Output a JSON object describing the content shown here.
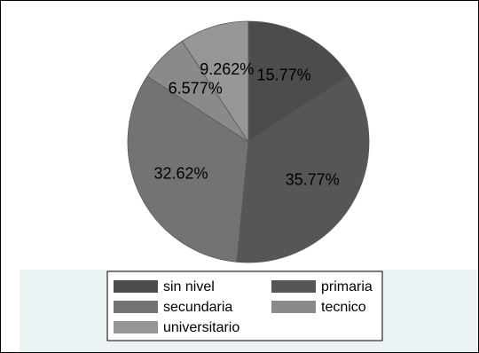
{
  "chart_data": {
    "type": "pie",
    "slices": [
      {
        "label": "sin nivel",
        "value": 15.77,
        "value_label": "15.77%",
        "color": "#4c4c4c"
      },
      {
        "label": "primaria",
        "value": 35.77,
        "value_label": "35.77%",
        "color": "#565656"
      },
      {
        "label": "secundaria",
        "value": 32.62,
        "value_label": "32.62%",
        "color": "#737373"
      },
      {
        "label": "tecnico",
        "value": 6.577,
        "value_label": "6.577%",
        "color": "#8a8a8a"
      },
      {
        "label": "universitario",
        "value": 9.262,
        "value_label": "9.262%",
        "color": "#969696"
      }
    ],
    "legend_placement": "bottom",
    "colors": {
      "plot_background": "#ffffff",
      "outer_background": "#eaf2f3",
      "legend_background": "#ffffff"
    }
  }
}
